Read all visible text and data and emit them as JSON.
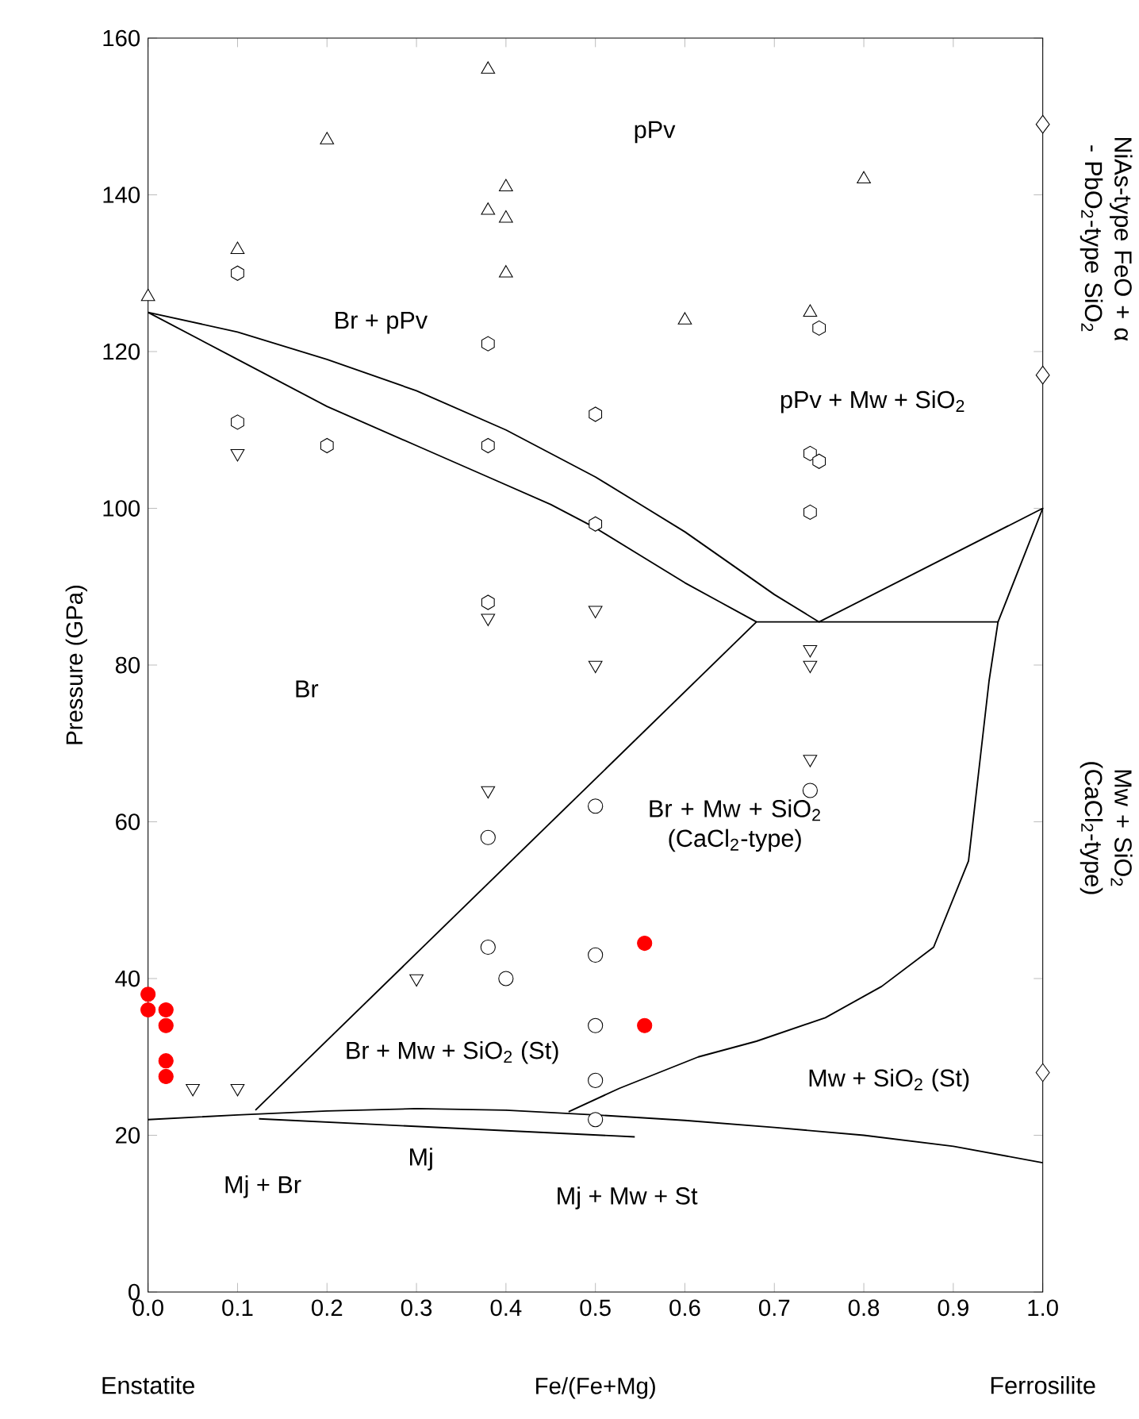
{
  "chart_data": {
    "type": "scatter",
    "xlabel": "Fe/(Fe+Mg)",
    "ylabel": "Pressure (GPa)",
    "xlim": [
      0,
      1
    ],
    "ylim": [
      0,
      160
    ],
    "xticks": [
      {
        "value": 0,
        "label": "0.0"
      },
      0.1,
      0.2,
      0.3,
      0.4,
      0.5,
      0.6,
      0.7,
      0.8,
      0.9,
      {
        "value": 1,
        "label": "1.0"
      }
    ],
    "yticks": [
      0,
      20,
      40,
      60,
      80,
      100,
      120,
      140,
      160
    ],
    "series": [
      {
        "type": "line",
        "color": "#000000",
        "marker": "none",
        "x": [
          0,
          0.1,
          0.2,
          0.3,
          0.4,
          0.5,
          0.6,
          0.7,
          0.8,
          0.9,
          1.0
        ],
        "values": [
          22,
          22.6,
          23.1,
          23.4,
          23.2,
          22.6,
          21.9,
          21.0,
          20.0,
          18.6,
          16.5
        ]
      },
      {
        "type": "line",
        "color": "#000000",
        "marker": "none",
        "x": [
          0,
          0.1,
          0.2,
          0.3,
          0.4,
          0.5,
          0.55,
          0.6,
          0.65,
          0.7,
          0.75,
          1.0,
          0.95
        ],
        "values": [
          125,
          122.5,
          119,
          115,
          110,
          104,
          100.5,
          97,
          93,
          89,
          85.5,
          100,
          85.5
        ]
      },
      {
        "type": "line",
        "color": "#000000",
        "marker": "none",
        "x": [
          0,
          0.1,
          0.2,
          0.3,
          0.38,
          0.45,
          0.5,
          0.55,
          0.6,
          0.64,
          0.68
        ],
        "values": [
          125,
          119,
          113,
          108,
          104,
          100.5,
          97.5,
          94,
          90.5,
          88,
          85.5
        ]
      },
      {
        "type": "line",
        "color": "#000000",
        "marker": "none",
        "x": [
          0.12,
          0.68,
          0.95,
          0.94,
          0.93,
          0.917,
          0.878,
          0.82,
          0.757,
          0.68,
          0.615,
          0.527,
          0.47
        ],
        "values": [
          23.2,
          85.5,
          85.5,
          78,
          68,
          55,
          44,
          39,
          35,
          32,
          30,
          26,
          23
        ]
      },
      {
        "type": "line",
        "color": "#000000",
        "marker": "none",
        "x": [
          0.124,
          0.544
        ],
        "values": [
          22.1,
          19.8
        ]
      },
      {
        "color": "#000000",
        "marker": "triangle",
        "x": [
          0.0,
          0.1,
          0.2,
          0.38,
          0.38,
          0.4,
          0.4,
          0.4,
          0.6,
          0.74,
          0.8
        ],
        "values": [
          127,
          133,
          147,
          156,
          138,
          141,
          137,
          130,
          124,
          125,
          142
        ]
      },
      {
        "color": "#000000",
        "x": [
          0.1,
          0.1,
          0.2,
          0.38,
          0.38,
          0.38,
          0.5,
          0.5,
          0.74,
          0.75,
          0.75,
          0.74
        ],
        "values": [
          130,
          111,
          108,
          121,
          108,
          88,
          112,
          98,
          107,
          106,
          123,
          99.5
        ]
      },
      {
        "color": "#000000",
        "marker": "triangle-down",
        "x": [
          0.1,
          0.38,
          0.38,
          0.5,
          0.5,
          0.74,
          0.74,
          0.74,
          0.3,
          0.05,
          0.1
        ],
        "values": [
          107,
          86,
          64,
          87,
          80,
          82,
          80,
          68,
          40,
          26,
          26
        ]
      },
      {
        "color": "#000000",
        "marker": "circle",
        "x": [
          0.38,
          0.38,
          0.4,
          0.5,
          0.5,
          0.5,
          0.5,
          0.5,
          0.74
        ],
        "values": [
          58,
          44,
          40,
          62,
          43,
          34,
          27,
          22,
          64
        ]
      },
      {
        "color": "#ff0000",
        "marker": "filled circle",
        "x": [
          0.0,
          0.0,
          0.02,
          0.02,
          0.02,
          0.02,
          0.555,
          0.555
        ],
        "values": [
          38,
          36,
          36,
          34,
          29.5,
          27.5,
          44.5,
          34
        ]
      },
      {
        "color": "#000000",
        "marker": "diamond",
        "x": [
          1.0,
          1.0,
          1.0
        ],
        "values": [
          149,
          117,
          28
        ]
      }
    ],
    "annotations": [
      "pPv",
      "Br + pPv",
      "pPv + Mw + SiO$_{2}$",
      "Br",
      "Br + Mw + SiO$_{2}$ (CaCl$_{2}$-type)",
      "Br + Mw + SiO$_{2}$ (St)",
      "Mw + SiO$_{2}$ (St)",
      "Mj",
      "Mj + Br",
      "Mj + Mw + St",
      "Enstatite",
      "Ferrosilite",
      "NiAs-type FeO + α - PbO$_{2}$-type SiO$_{2}$",
      "Mw + SiO$_{2}$ (CaCl$_{2}$-type)"
    ]
  }
}
